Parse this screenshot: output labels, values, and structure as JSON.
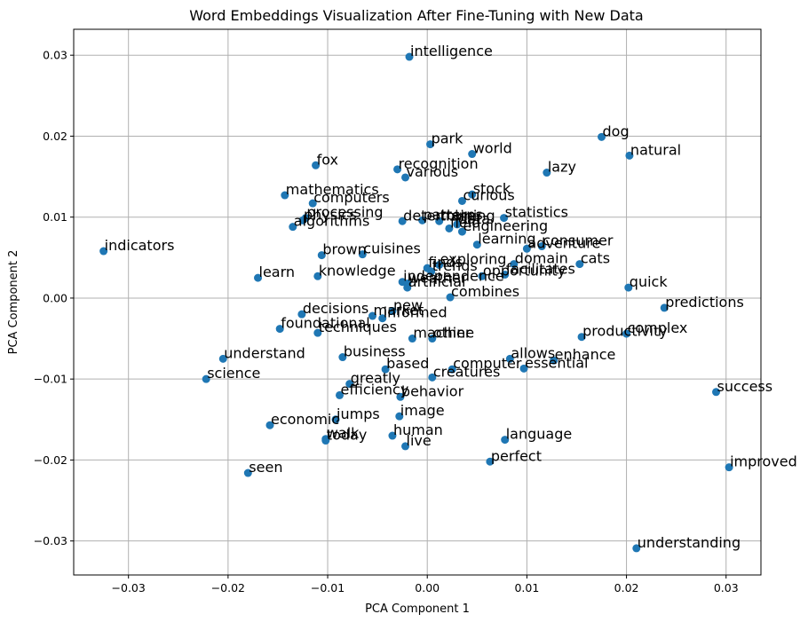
{
  "chart_data": {
    "type": "scatter",
    "title": "Word Embeddings Visualization After Fine-Tuning with New Data",
    "xlabel": "PCA Component 1",
    "ylabel": "PCA Component 2",
    "xlim": [
      -0.0355,
      0.0335
    ],
    "ylim": [
      -0.0342,
      0.0332
    ],
    "xticks": [
      -0.03,
      -0.02,
      -0.01,
      0.0,
      0.01,
      0.02,
      0.03
    ],
    "xtick_labels": [
      "−0.03",
      "−0.02",
      "−0.01",
      "0.00",
      "0.01",
      "0.02",
      "0.03"
    ],
    "yticks": [
      -0.03,
      -0.02,
      -0.01,
      0.0,
      0.01,
      0.02,
      0.03
    ],
    "ytick_labels": [
      "−0.03",
      "−0.02",
      "−0.01",
      "0.00",
      "0.01",
      "0.02",
      "0.03"
    ],
    "grid": true,
    "point_color": "#1f77b4",
    "points": [
      {
        "label": "intelligence",
        "x": -0.0018,
        "y": 0.0298
      },
      {
        "label": "park",
        "x": 0.0003,
        "y": 0.019
      },
      {
        "label": "world",
        "x": 0.0045,
        "y": 0.0178
      },
      {
        "label": "dog",
        "x": 0.0175,
        "y": 0.0199
      },
      {
        "label": "natural",
        "x": 0.0203,
        "y": 0.0176
      },
      {
        "label": "fox",
        "x": -0.0112,
        "y": 0.0164
      },
      {
        "label": "recognition",
        "x": -0.003,
        "y": 0.0159
      },
      {
        "label": "various",
        "x": -0.0022,
        "y": 0.0149
      },
      {
        "label": "lazy",
        "x": 0.012,
        "y": 0.0155
      },
      {
        "label": "stock",
        "x": 0.0045,
        "y": 0.0128
      },
      {
        "label": "curious",
        "x": 0.0035,
        "y": 0.012
      },
      {
        "label": "mathematics",
        "x": -0.0143,
        "y": 0.0127
      },
      {
        "label": "computers",
        "x": -0.0115,
        "y": 0.0117
      },
      {
        "label": "processing",
        "x": -0.0122,
        "y": 0.0099
      },
      {
        "label": "physics",
        "x": -0.0125,
        "y": 0.0096
      },
      {
        "label": "algorithms",
        "x": -0.0135,
        "y": 0.0088
      },
      {
        "label": "determine",
        "x": -0.0025,
        "y": 0.0095
      },
      {
        "label": "patterns",
        "x": -0.0005,
        "y": 0.0096
      },
      {
        "label": "training",
        "x": 0.0012,
        "y": 0.0095
      },
      {
        "label": "data",
        "x": 0.003,
        "y": 0.0091
      },
      {
        "label": "engineering",
        "x": 0.0035,
        "y": 0.0082
      },
      {
        "label": "field",
        "x": 0.0022,
        "y": 0.0086
      },
      {
        "label": "statistics",
        "x": 0.0077,
        "y": 0.0099
      },
      {
        "label": "learning",
        "x": 0.005,
        "y": 0.0066
      },
      {
        "label": "adventure",
        "x": 0.01,
        "y": 0.0061
      },
      {
        "label": "consumer",
        "x": 0.0115,
        "y": 0.0064
      },
      {
        "label": "indicators",
        "x": -0.0325,
        "y": 0.0058
      },
      {
        "label": "brown",
        "x": -0.0106,
        "y": 0.0053
      },
      {
        "label": "cuisines",
        "x": -0.0065,
        "y": 0.0054
      },
      {
        "label": "exploring",
        "x": 0.0012,
        "y": 0.0041
      },
      {
        "label": "domain",
        "x": 0.0087,
        "y": 0.0042
      },
      {
        "label": "cats",
        "x": 0.0153,
        "y": 0.0042
      },
      {
        "label": "finds",
        "x": 0.0,
        "y": 0.0037
      },
      {
        "label": "trends",
        "x": 0.0004,
        "y": 0.0033
      },
      {
        "label": "opportunity",
        "x": 0.0055,
        "y": 0.0027
      },
      {
        "label": "facilitates",
        "x": 0.0078,
        "y": 0.0029
      },
      {
        "label": "learn",
        "x": -0.017,
        "y": 0.0025
      },
      {
        "label": "knowledge",
        "x": -0.011,
        "y": 0.0027
      },
      {
        "label": "independence",
        "x": -0.0025,
        "y": 0.002
      },
      {
        "label": "weather",
        "x": -0.002,
        "y": 0.0018
      },
      {
        "label": "artificial",
        "x": -0.002,
        "y": 0.0013
      },
      {
        "label": "quick",
        "x": 0.0202,
        "y": 0.0013
      },
      {
        "label": "combines",
        "x": 0.0023,
        "y": 0.0001
      },
      {
        "label": "predictions",
        "x": 0.0238,
        "y": -0.0012
      },
      {
        "label": "decisions",
        "x": -0.0126,
        "y": -0.002
      },
      {
        "label": "new",
        "x": -0.0035,
        "y": -0.0016
      },
      {
        "label": "market",
        "x": -0.0055,
        "y": -0.0022
      },
      {
        "label": "informed",
        "x": -0.0045,
        "y": -0.0025
      },
      {
        "label": "foundational",
        "x": -0.0148,
        "y": -0.0038
      },
      {
        "label": "techniques",
        "x": -0.011,
        "y": -0.0043
      },
      {
        "label": "machine",
        "x": -0.0015,
        "y": -0.005
      },
      {
        "label": "other",
        "x": 0.0005,
        "y": -0.005
      },
      {
        "label": "complex",
        "x": 0.02,
        "y": -0.0044
      },
      {
        "label": "productivity",
        "x": 0.0155,
        "y": -0.0048
      },
      {
        "label": "understand",
        "x": -0.0205,
        "y": -0.0075
      },
      {
        "label": "business",
        "x": -0.0085,
        "y": -0.0073
      },
      {
        "label": "allows",
        "x": 0.0083,
        "y": -0.0075
      },
      {
        "label": "enhance",
        "x": 0.0127,
        "y": -0.0077
      },
      {
        "label": "based",
        "x": -0.0042,
        "y": -0.0088
      },
      {
        "label": "computer",
        "x": 0.0025,
        "y": -0.0088
      },
      {
        "label": "essential",
        "x": 0.0097,
        "y": -0.0087
      },
      {
        "label": "creatures",
        "x": 0.0005,
        "y": -0.0098
      },
      {
        "label": "science",
        "x": -0.0222,
        "y": -0.01
      },
      {
        "label": "greatly",
        "x": -0.0078,
        "y": -0.0106
      },
      {
        "label": "efficiency",
        "x": -0.0088,
        "y": -0.012
      },
      {
        "label": "behavior",
        "x": -0.0027,
        "y": -0.0122
      },
      {
        "label": "jumps",
        "x": -0.0092,
        "y": -0.015
      },
      {
        "label": "image",
        "x": -0.0028,
        "y": -0.0146
      },
      {
        "label": "economic",
        "x": -0.0158,
        "y": -0.0157
      },
      {
        "label": "human",
        "x": -0.0035,
        "y": -0.017
      },
      {
        "label": "live",
        "x": -0.0022,
        "y": -0.0183
      },
      {
        "label": "language",
        "x": 0.0078,
        "y": -0.0175
      },
      {
        "label": "walk",
        "x": -0.0102,
        "y": -0.0174
      },
      {
        "label": "today",
        "x": -0.0102,
        "y": -0.0176
      },
      {
        "label": "perfect",
        "x": 0.0063,
        "y": -0.0202
      },
      {
        "label": "success",
        "x": 0.029,
        "y": -0.0116
      },
      {
        "label": "improved",
        "x": 0.0303,
        "y": -0.0209
      },
      {
        "label": "seen",
        "x": -0.018,
        "y": -0.0216
      },
      {
        "label": "understanding",
        "x": 0.021,
        "y": -0.0309
      }
    ]
  }
}
